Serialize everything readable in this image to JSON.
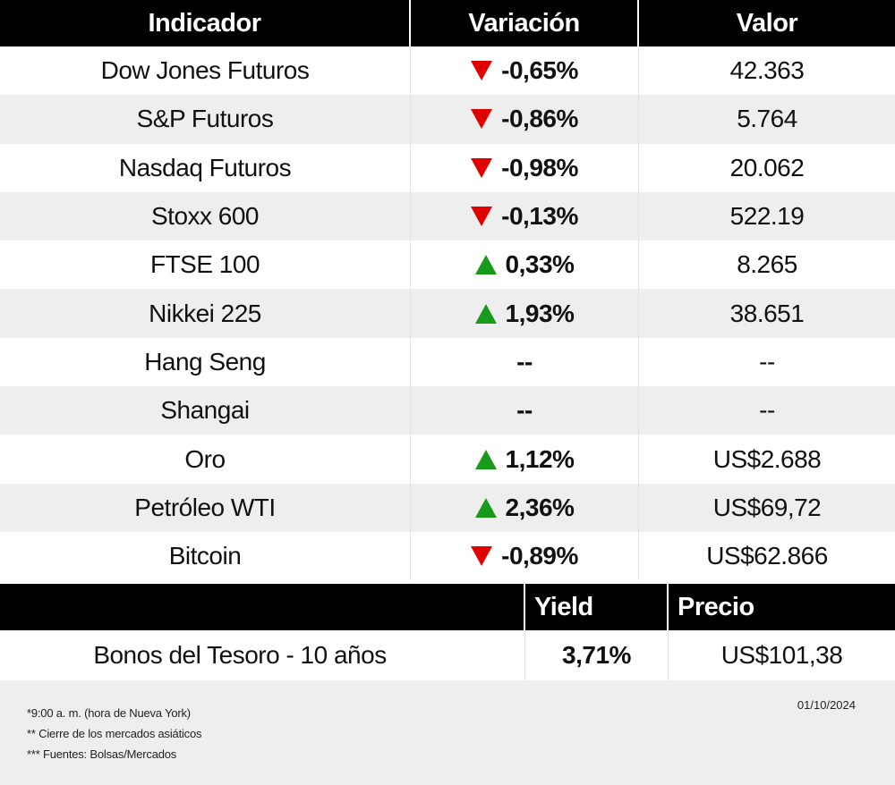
{
  "header": {
    "col1": "Indicador",
    "col2": "Variación",
    "col3": "Valor"
  },
  "colors": {
    "down": "#e00000",
    "up": "#1a9a1a",
    "header_bg": "#000000",
    "alt_row": "#eeeeee"
  },
  "rows": [
    {
      "name": "Dow Jones Futuros",
      "trend": "down",
      "variation": "-0,65%",
      "value": "42.363"
    },
    {
      "name": "S&P Futuros",
      "trend": "down",
      "variation": "-0,86%",
      "value": "5.764"
    },
    {
      "name": "Nasdaq Futuros",
      "trend": "down",
      "variation": "-0,98%",
      "value": "20.062"
    },
    {
      "name": "Stoxx 600",
      "trend": "down",
      "variation": "-0,13%",
      "value": "522.19"
    },
    {
      "name": "FTSE 100",
      "trend": "up",
      "variation": "0,33%",
      "value": "8.265"
    },
    {
      "name": "Nikkei 225",
      "trend": "up",
      "variation": "1,93%",
      "value": "38.651"
    },
    {
      "name": "Hang Seng",
      "trend": "none",
      "variation": "--",
      "value": "--"
    },
    {
      "name": "Shangai",
      "trend": "none",
      "variation": "--",
      "value": "--"
    },
    {
      "name": "Oro",
      "trend": "up",
      "variation": "1,12%",
      "value": "US$2.688"
    },
    {
      "name": "Petróleo WTI",
      "trend": "up",
      "variation": "2,36%",
      "value": "US$69,72"
    },
    {
      "name": "Bitcoin",
      "trend": "down",
      "variation": "-0,89%",
      "value": "US$62.866"
    }
  ],
  "bonds": {
    "header_yield": "Yield",
    "header_price": "Precio",
    "name": "Bonos del Tesoro - 10 años",
    "yield": "3,71%",
    "price": "US$101,38"
  },
  "footer": {
    "note1": "*9:00 a. m. (hora de Nueva York)",
    "note2": "** Cierre de los mercados asiáticos",
    "note3": "*** Fuentes:  Bolsas/Mercados",
    "date": "01/10/2024"
  }
}
